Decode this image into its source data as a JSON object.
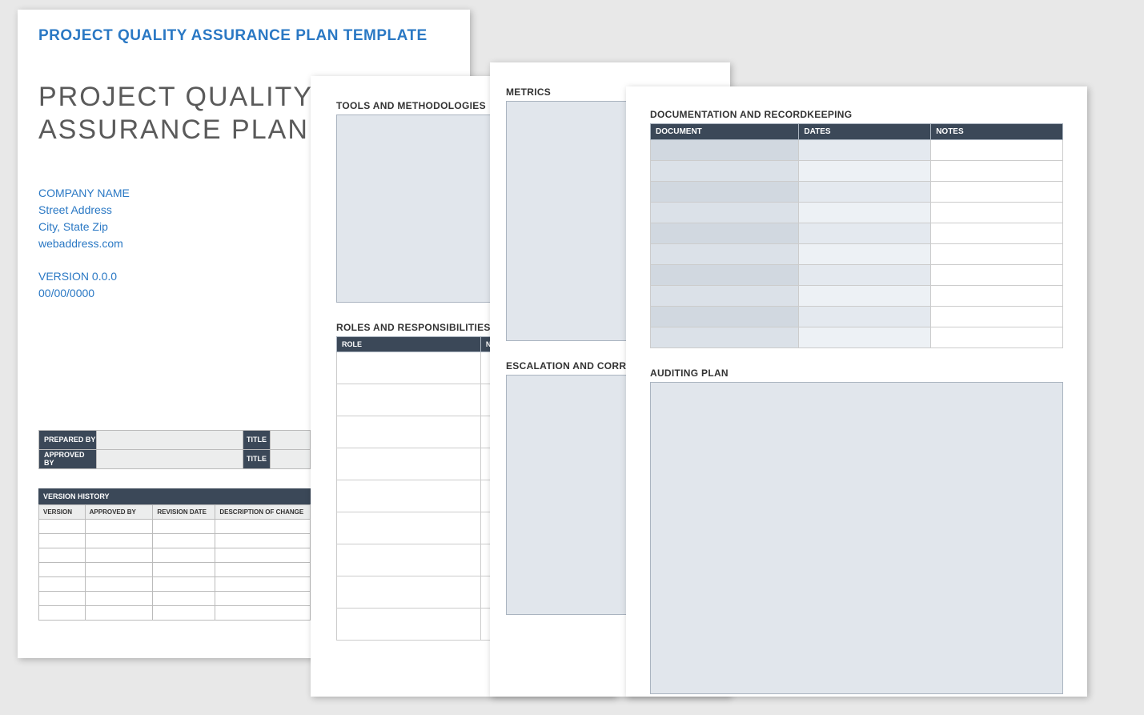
{
  "colors": {
    "background": "#e8e8e8",
    "page_bg": "#ffffff",
    "accent_blue": "#2a78c4",
    "title_gray": "#5a5a5a",
    "header_dark": "#3b4858",
    "box_fill": "#e1e6ec",
    "box_border": "#aab4c0",
    "light_gray": "#eceded",
    "doc_col1": "#d1d8e0",
    "doc_col2": "#e4e9ef"
  },
  "page1": {
    "template_label": "PROJECT QUALITY ASSURANCE PLAN TEMPLATE",
    "doc_title_line1": "PROJECT QUALITY",
    "doc_title_line2": "ASSURANCE PLAN",
    "company": {
      "name": "COMPANY NAME",
      "street": "Street Address",
      "city_state_zip": "City, State Zip",
      "web": "webaddress.com"
    },
    "version_label": "VERSION 0.0.0",
    "date": "00/00/0000",
    "sign": {
      "prepared_by_label": "PREPARED BY",
      "approved_by_label": "APPROVED BY",
      "title_label": "TITLE"
    },
    "version_history": {
      "title": "VERSION HISTORY",
      "columns": [
        "VERSION",
        "APPROVED BY",
        "REVISION DATE",
        "DESCRIPTION OF CHANGE"
      ],
      "row_count": 7
    }
  },
  "page2": {
    "tools_title": "TOOLS AND METHODOLOGIES",
    "roles_title": "ROLES AND RESPONSIBILITIES",
    "roles_columns": [
      "ROLE",
      "NAME"
    ],
    "roles_row_count": 9
  },
  "page3": {
    "metrics_title": "METRICS",
    "escalation_title": "ESCALATION AND CORRE"
  },
  "page4": {
    "doc_title": "DOCUMENTATION AND RECORDKEEPING",
    "doc_columns": [
      "DOCUMENT",
      "DATES",
      "NOTES"
    ],
    "doc_row_count": 10,
    "auditing_title": "AUDITING PLAN"
  }
}
